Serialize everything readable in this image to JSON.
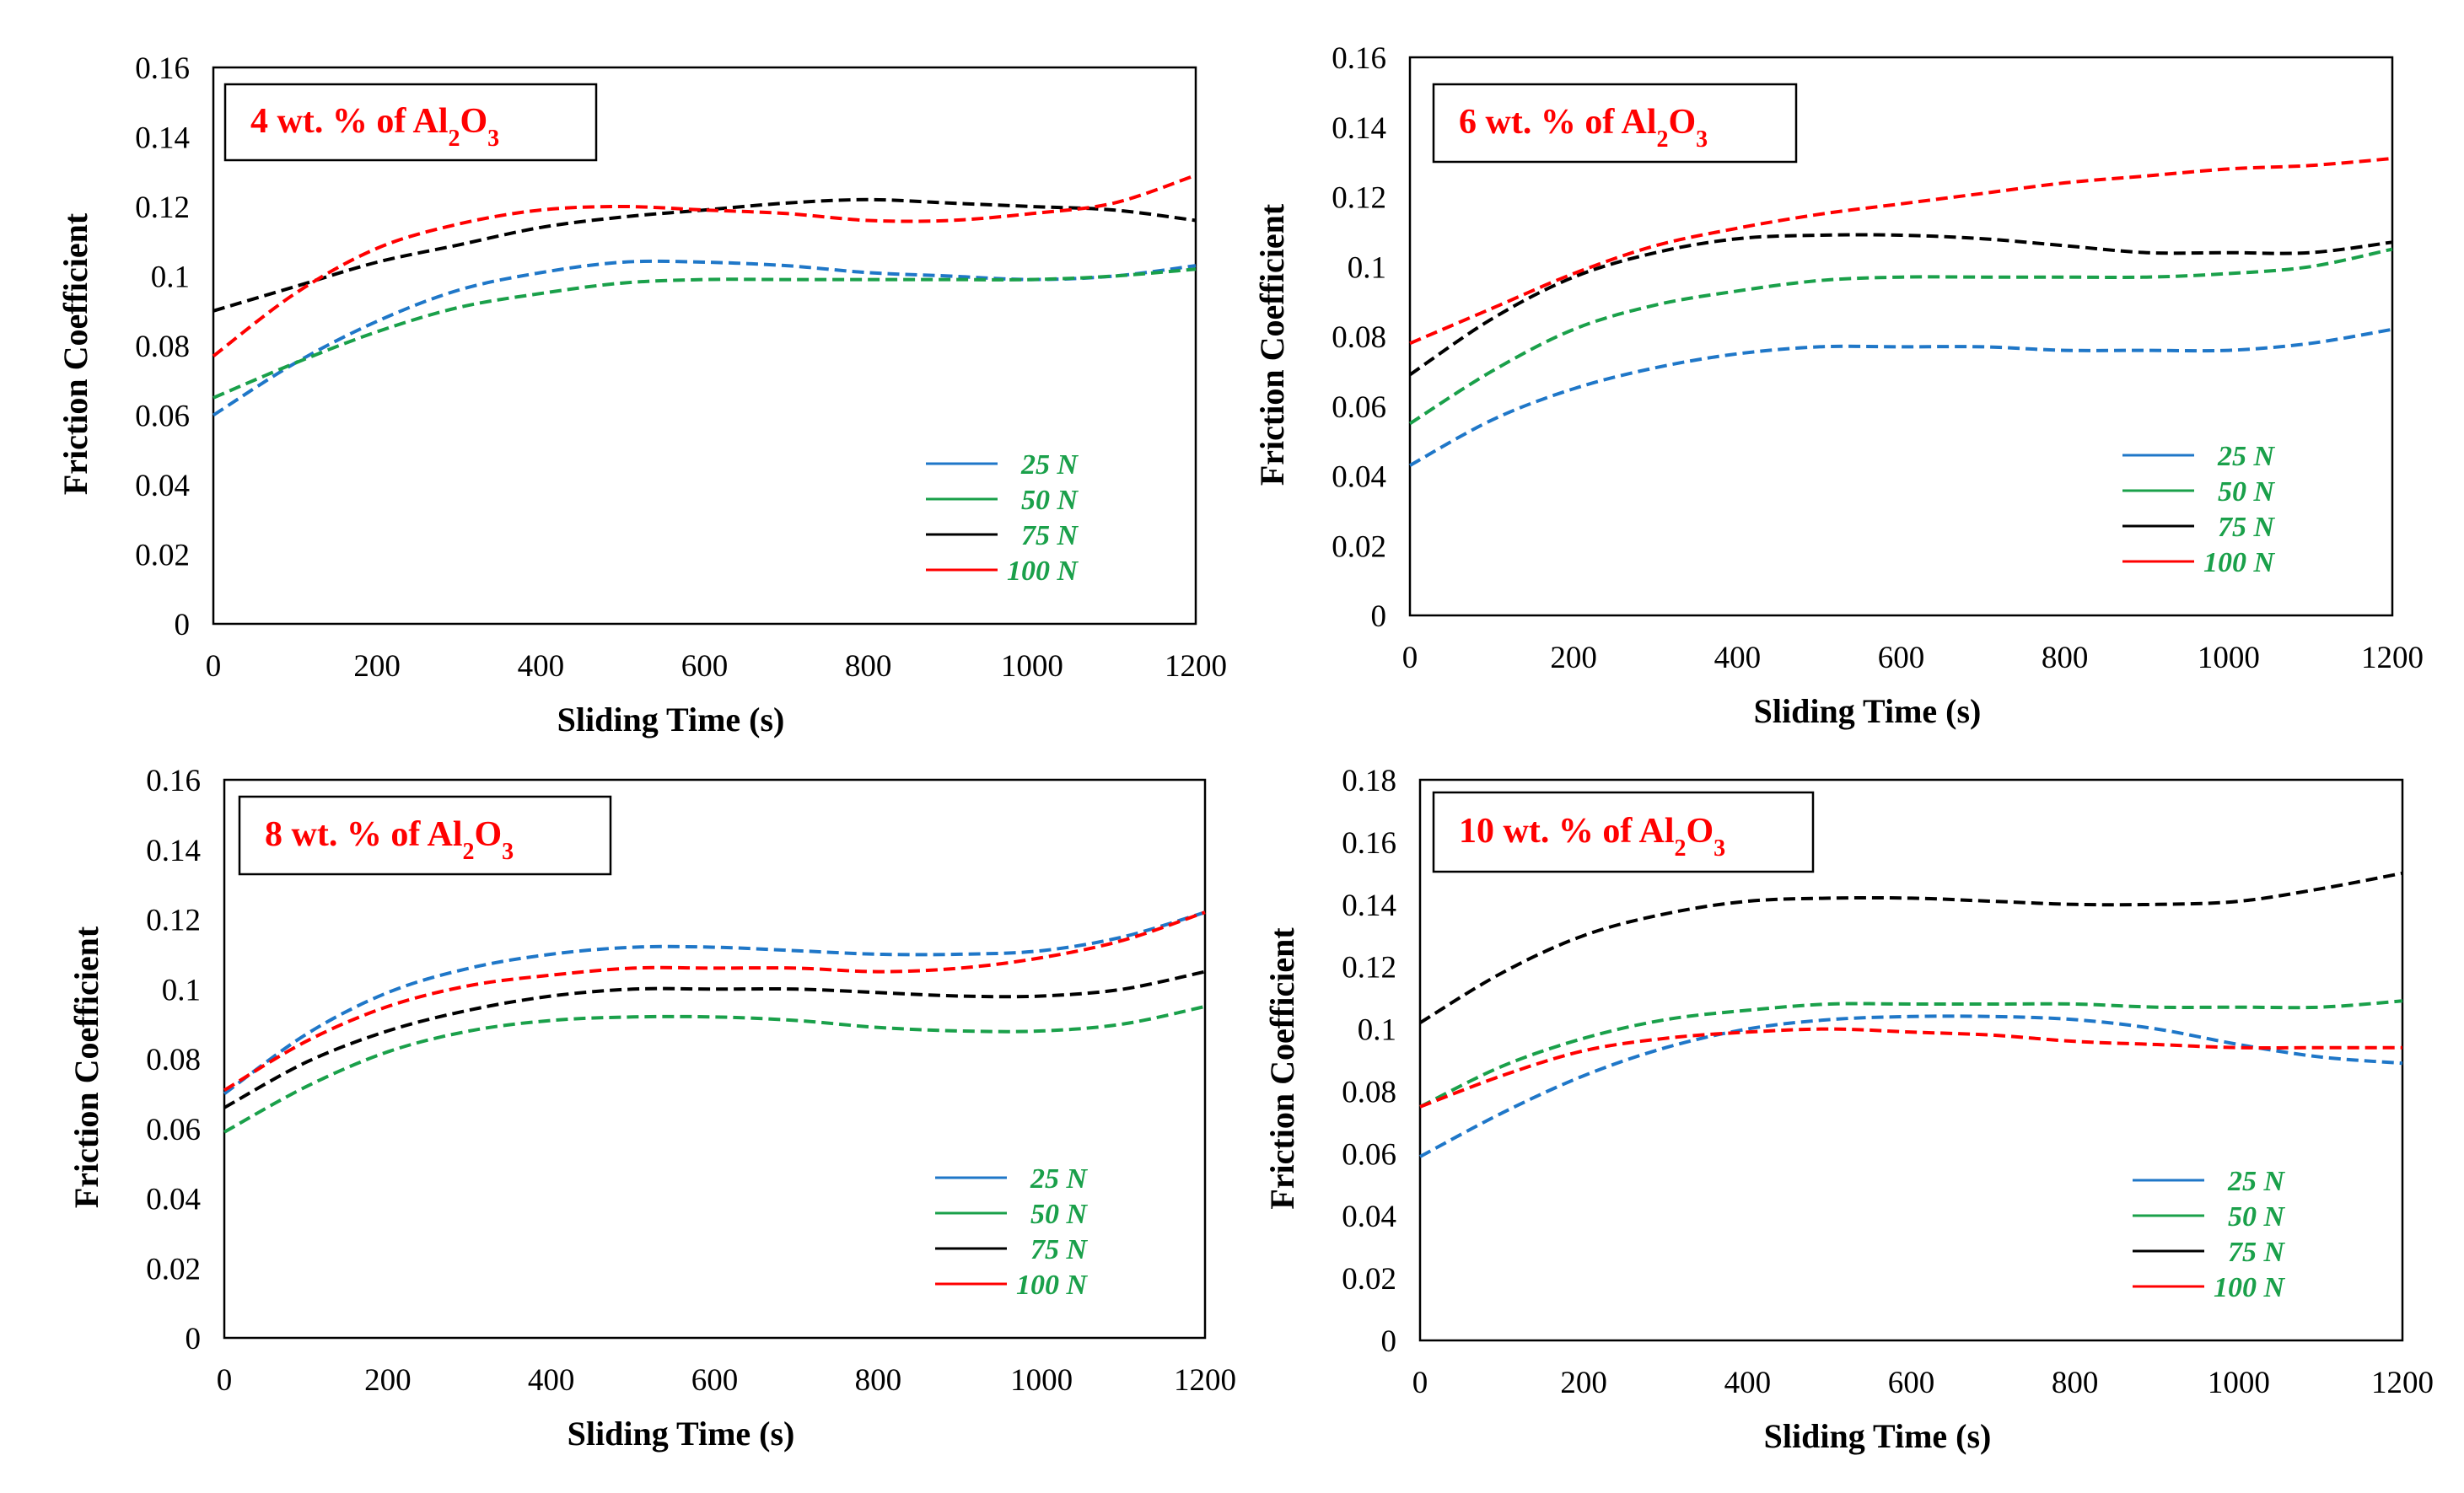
{
  "chart_data": [
    {
      "type": "line",
      "title_prefix": "4 wt. % of Al",
      "title_sub1": "2",
      "title_mid": "O",
      "title_sub2": "3",
      "xlabel": "Sliding Time (s)",
      "ylabel": "Friction Coefficient",
      "xlim": [
        0,
        1200
      ],
      "ylim": [
        0,
        0.16
      ],
      "xticks": [
        "0",
        "200",
        "400",
        "600",
        "800",
        "1000",
        "1200"
      ],
      "yticks": [
        "0",
        "0.02",
        "0.04",
        "0.06",
        "0.08",
        "0.1",
        "0.12",
        "0.14",
        "0.16"
      ],
      "legend_position": "bottom-right",
      "series": [
        {
          "name": "25 N",
          "color": "#1f77c8",
          "x": [
            0,
            100,
            200,
            300,
            400,
            500,
            600,
            700,
            800,
            900,
            1000,
            1100,
            1200
          ],
          "y": [
            0.06,
            0.075,
            0.087,
            0.096,
            0.101,
            0.104,
            0.104,
            0.103,
            0.101,
            0.1,
            0.099,
            0.1,
            0.103
          ]
        },
        {
          "name": "50 N",
          "color": "#1aa04a",
          "x": [
            0,
            100,
            200,
            300,
            400,
            500,
            600,
            700,
            800,
            900,
            1000,
            1100,
            1200
          ],
          "y": [
            0.065,
            0.075,
            0.084,
            0.091,
            0.095,
            0.098,
            0.099,
            0.099,
            0.099,
            0.099,
            0.099,
            0.1,
            0.102
          ]
        },
        {
          "name": "75 N",
          "color": "#000000",
          "x": [
            0,
            100,
            200,
            300,
            400,
            500,
            600,
            700,
            800,
            900,
            1000,
            1100,
            1200
          ],
          "y": [
            0.09,
            0.097,
            0.104,
            0.109,
            0.114,
            0.117,
            0.119,
            0.121,
            0.122,
            0.121,
            0.12,
            0.119,
            0.116
          ]
        },
        {
          "name": "100 N",
          "color": "#ff0000",
          "x": [
            0,
            100,
            200,
            300,
            400,
            500,
            600,
            700,
            800,
            900,
            1000,
            1100,
            1200
          ],
          "y": [
            0.077,
            0.095,
            0.108,
            0.115,
            0.119,
            0.12,
            0.119,
            0.118,
            0.116,
            0.116,
            0.118,
            0.121,
            0.129
          ]
        }
      ]
    },
    {
      "type": "line",
      "title_prefix": "6 wt. % of Al",
      "title_sub1": "2",
      "title_mid": "O",
      "title_sub2": "3",
      "xlabel": "Sliding Time (s)",
      "ylabel": "Friction Coefficient",
      "xlim": [
        0,
        1200
      ],
      "ylim": [
        0,
        0.16
      ],
      "xticks": [
        "0",
        "200",
        "400",
        "600",
        "800",
        "1000",
        "1200"
      ],
      "yticks": [
        "0",
        "0.02",
        "0.04",
        "0.06",
        "0.08",
        "0.1",
        "0.12",
        "0.14",
        "0.16"
      ],
      "legend_position": "bottom-right",
      "series": [
        {
          "name": "25 N",
          "color": "#1f77c8",
          "x": [
            0,
            100,
            200,
            300,
            400,
            500,
            600,
            700,
            800,
            900,
            1000,
            1100,
            1200
          ],
          "y": [
            0.043,
            0.056,
            0.065,
            0.071,
            0.075,
            0.077,
            0.077,
            0.077,
            0.076,
            0.076,
            0.076,
            0.078,
            0.082
          ]
        },
        {
          "name": "50 N",
          "color": "#1aa04a",
          "x": [
            0,
            100,
            200,
            300,
            400,
            500,
            600,
            700,
            800,
            900,
            1000,
            1100,
            1200
          ],
          "y": [
            0.055,
            0.07,
            0.082,
            0.089,
            0.093,
            0.096,
            0.097,
            0.097,
            0.097,
            0.097,
            0.098,
            0.1,
            0.105
          ]
        },
        {
          "name": "75 N",
          "color": "#000000",
          "x": [
            0,
            100,
            200,
            300,
            400,
            500,
            600,
            700,
            800,
            900,
            1000,
            1100,
            1200
          ],
          "y": [
            0.069,
            0.085,
            0.097,
            0.104,
            0.108,
            0.109,
            0.109,
            0.108,
            0.106,
            0.104,
            0.104,
            0.104,
            0.107
          ]
        },
        {
          "name": "100 N",
          "color": "#ff0000",
          "x": [
            0,
            100,
            200,
            300,
            400,
            500,
            600,
            700,
            800,
            900,
            1000,
            1100,
            1200
          ],
          "y": [
            0.078,
            0.088,
            0.098,
            0.106,
            0.111,
            0.115,
            0.118,
            0.121,
            0.124,
            0.126,
            0.128,
            0.129,
            0.131
          ]
        }
      ]
    },
    {
      "type": "line",
      "title_prefix": "8 wt. % of Al",
      "title_sub1": "2",
      "title_mid": "O",
      "title_sub2": "3",
      "xlabel": "Sliding Time (s)",
      "ylabel": "Friction Coefficient",
      "xlim": [
        0,
        1200
      ],
      "ylim": [
        0,
        0.16
      ],
      "xticks": [
        "0",
        "200",
        "400",
        "600",
        "800",
        "1000",
        "1200"
      ],
      "yticks": [
        "0",
        "0.02",
        "0.04",
        "0.06",
        "0.08",
        "0.1",
        "0.12",
        "0.14",
        "0.16"
      ],
      "legend_position": "bottom-right",
      "series": [
        {
          "name": "25 N",
          "color": "#1f77c8",
          "x": [
            0,
            100,
            200,
            300,
            400,
            500,
            600,
            700,
            800,
            900,
            1000,
            1100,
            1200
          ],
          "y": [
            0.07,
            0.087,
            0.099,
            0.106,
            0.11,
            0.112,
            0.112,
            0.111,
            0.11,
            0.11,
            0.111,
            0.115,
            0.122
          ]
        },
        {
          "name": "50 N",
          "color": "#1aa04a",
          "x": [
            0,
            100,
            200,
            300,
            400,
            500,
            600,
            700,
            800,
            900,
            1000,
            1100,
            1200
          ],
          "y": [
            0.059,
            0.072,
            0.082,
            0.088,
            0.091,
            0.092,
            0.092,
            0.091,
            0.089,
            0.088,
            0.088,
            0.09,
            0.095
          ]
        },
        {
          "name": "75 N",
          "color": "#000000",
          "x": [
            0,
            100,
            200,
            300,
            400,
            500,
            600,
            700,
            800,
            900,
            1000,
            1100,
            1200
          ],
          "y": [
            0.066,
            0.079,
            0.088,
            0.094,
            0.098,
            0.1,
            0.1,
            0.1,
            0.099,
            0.098,
            0.098,
            0.1,
            0.105
          ]
        },
        {
          "name": "100 N",
          "color": "#ff0000",
          "x": [
            0,
            100,
            200,
            300,
            400,
            500,
            600,
            700,
            800,
            900,
            1000,
            1100,
            1200
          ],
          "y": [
            0.071,
            0.085,
            0.095,
            0.101,
            0.104,
            0.106,
            0.106,
            0.106,
            0.105,
            0.106,
            0.109,
            0.114,
            0.122
          ]
        }
      ]
    },
    {
      "type": "line",
      "title_prefix": "10 wt. % of Al",
      "title_sub1": "2",
      "title_mid": "O",
      "title_sub2": "3",
      "xlabel": "Sliding Time (s)",
      "ylabel": "Friction Coefficient",
      "xlim": [
        0,
        1200
      ],
      "ylim": [
        0,
        0.18
      ],
      "xticks": [
        "0",
        "200",
        "400",
        "600",
        "800",
        "1000",
        "1200"
      ],
      "yticks": [
        "0",
        "0.02",
        "0.04",
        "0.06",
        "0.08",
        "0.1",
        "0.12",
        "0.14",
        "0.16",
        "0.18"
      ],
      "legend_position": "bottom-right",
      "series": [
        {
          "name": "25 N",
          "color": "#1f77c8",
          "x": [
            0,
            100,
            200,
            300,
            400,
            500,
            600,
            700,
            800,
            900,
            1000,
            1100,
            1200
          ],
          "y": [
            0.059,
            0.073,
            0.085,
            0.094,
            0.1,
            0.103,
            0.104,
            0.104,
            0.103,
            0.1,
            0.095,
            0.091,
            0.089
          ]
        },
        {
          "name": "50 N",
          "color": "#1aa04a",
          "x": [
            0,
            100,
            200,
            300,
            400,
            500,
            600,
            700,
            800,
            900,
            1000,
            1100,
            1200
          ],
          "y": [
            0.075,
            0.088,
            0.097,
            0.103,
            0.106,
            0.108,
            0.108,
            0.108,
            0.108,
            0.107,
            0.107,
            0.107,
            0.109
          ]
        },
        {
          "name": "75 N",
          "color": "#000000",
          "x": [
            0,
            100,
            200,
            300,
            400,
            500,
            600,
            700,
            800,
            900,
            1000,
            1100,
            1200
          ],
          "y": [
            0.102,
            0.118,
            0.13,
            0.137,
            0.141,
            0.142,
            0.142,
            0.141,
            0.14,
            0.14,
            0.141,
            0.145,
            0.15
          ]
        },
        {
          "name": "100 N",
          "color": "#ff0000",
          "x": [
            0,
            100,
            200,
            300,
            400,
            500,
            600,
            700,
            800,
            900,
            1000,
            1100,
            1200
          ],
          "y": [
            0.075,
            0.085,
            0.093,
            0.097,
            0.099,
            0.1,
            0.099,
            0.098,
            0.096,
            0.095,
            0.094,
            0.094,
            0.094
          ]
        }
      ]
    }
  ]
}
